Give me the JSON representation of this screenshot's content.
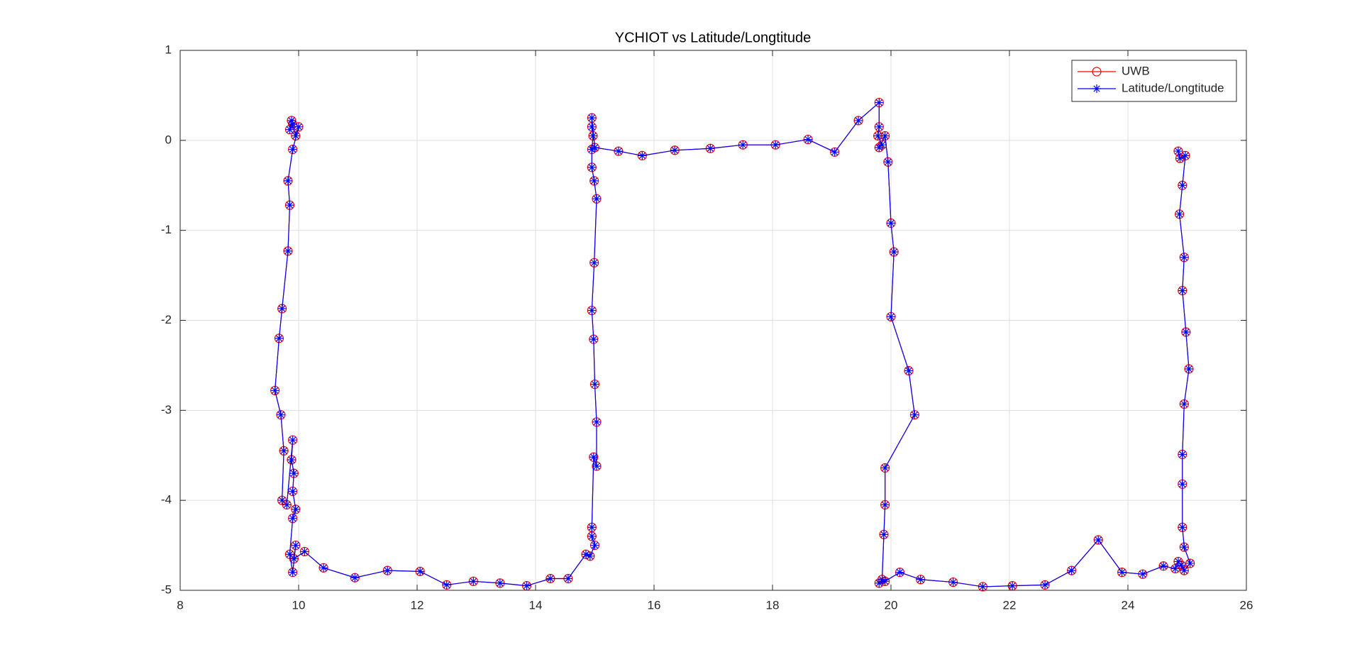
{
  "chart_data": {
    "type": "line",
    "title": "YCHIOT vs Latitude/Longtitude",
    "xlim": [
      8,
      26
    ],
    "xticks": [
      8,
      10,
      12,
      14,
      16,
      18,
      20,
      22,
      24,
      26
    ],
    "ylim": [
      -5,
      1
    ],
    "yticks": [
      -5,
      -4,
      -3,
      -2,
      -1,
      0,
      1
    ],
    "grid": true,
    "legend": "northeast",
    "series": [
      {
        "name": "UWB",
        "color": "#ff0000",
        "marker": "circle",
        "x": [
          9.88,
          9.85,
          9.9,
          9.95,
          10.0,
          9.9,
          9.82,
          9.85,
          9.82,
          9.72,
          9.67,
          9.6,
          9.7,
          9.75,
          9.72,
          9.8,
          9.9,
          9.88,
          9.92,
          9.9,
          9.95,
          9.9,
          9.85,
          9.9,
          9.95,
          9.92,
          10.1,
          10.42,
          10.95,
          11.5,
          12.05,
          12.5,
          12.95,
          13.4,
          13.85,
          14.25,
          14.55,
          14.85,
          14.92,
          15.0,
          14.95,
          14.95,
          14.98,
          15.03,
          15.03,
          15.0,
          14.98,
          14.95,
          14.99,
          15.03,
          14.99,
          14.95,
          14.95,
          14.97,
          14.95,
          14.95,
          15.0,
          15.4,
          15.8,
          16.35,
          16.95,
          17.5,
          18.05,
          18.6,
          19.05,
          19.45,
          19.8,
          19.8,
          19.78,
          19.85,
          19.8,
          19.9,
          19.95,
          20.0,
          20.05,
          20.0,
          20.3,
          20.4,
          19.9,
          19.9,
          19.88,
          19.85,
          19.8,
          19.9,
          20.15,
          20.5,
          21.05,
          21.55,
          22.05,
          22.6,
          23.05,
          23.5,
          23.9,
          24.25,
          24.6,
          24.8,
          24.85,
          24.9,
          24.95,
          25.05,
          24.95,
          24.92,
          24.92,
          24.92,
          24.95,
          25.03,
          24.98,
          24.92,
          24.95,
          24.87,
          24.92,
          24.97,
          24.88,
          24.85
        ],
        "y": [
          0.22,
          0.12,
          0.18,
          0.05,
          0.15,
          -0.1,
          -0.45,
          -0.72,
          -1.23,
          -1.87,
          -2.2,
          -2.78,
          -3.05,
          -3.45,
          -4.0,
          -4.05,
          -3.33,
          -3.55,
          -3.7,
          -3.9,
          -4.1,
          -4.2,
          -4.6,
          -4.8,
          -4.5,
          -4.65,
          -4.57,
          -4.75,
          -4.86,
          -4.78,
          -4.79,
          -4.94,
          -4.9,
          -4.92,
          -4.95,
          -4.87,
          -4.87,
          -4.6,
          -4.62,
          -4.5,
          -4.4,
          -4.3,
          -3.52,
          -3.62,
          -3.13,
          -2.71,
          -2.21,
          -1.89,
          -1.36,
          -0.65,
          -0.45,
          -0.3,
          -0.1,
          0.05,
          0.15,
          0.25,
          -0.08,
          -0.12,
          -0.17,
          -0.11,
          -0.09,
          -0.05,
          -0.05,
          0.01,
          -0.13,
          0.22,
          0.42,
          0.15,
          0.05,
          -0.05,
          -0.08,
          0.05,
          -0.24,
          -0.92,
          -1.24,
          -1.96,
          -2.56,
          -3.05,
          -3.64,
          -4.05,
          -4.38,
          -4.88,
          -4.92,
          -4.9,
          -4.8,
          -4.88,
          -4.91,
          -4.96,
          -4.95,
          -4.94,
          -4.78,
          -4.44,
          -4.8,
          -4.82,
          -4.73,
          -4.76,
          -4.68,
          -4.72,
          -4.78,
          -4.7,
          -4.52,
          -4.3,
          -3.82,
          -3.49,
          -2.93,
          -2.54,
          -2.13,
          -1.67,
          -1.3,
          -0.82,
          -0.5,
          -0.17,
          -0.2,
          -0.12
        ]
      },
      {
        "name": "Latitude/Longtitude",
        "color": "#0000ff",
        "marker": "asterisk",
        "x": [
          9.88,
          9.85,
          9.9,
          9.95,
          10.0,
          9.9,
          9.82,
          9.85,
          9.82,
          9.72,
          9.67,
          9.6,
          9.7,
          9.75,
          9.72,
          9.8,
          9.9,
          9.88,
          9.92,
          9.9,
          9.95,
          9.9,
          9.85,
          9.9,
          9.95,
          9.92,
          10.1,
          10.42,
          10.95,
          11.5,
          12.05,
          12.5,
          12.95,
          13.4,
          13.85,
          14.25,
          14.55,
          14.85,
          14.92,
          15.0,
          14.95,
          14.95,
          14.98,
          15.03,
          15.03,
          15.0,
          14.98,
          14.95,
          14.99,
          15.03,
          14.99,
          14.95,
          14.95,
          14.97,
          14.95,
          14.95,
          15.0,
          15.4,
          15.8,
          16.35,
          16.95,
          17.5,
          18.05,
          18.6,
          19.05,
          19.45,
          19.8,
          19.8,
          19.78,
          19.85,
          19.8,
          19.9,
          19.95,
          20.0,
          20.05,
          20.0,
          20.3,
          20.4,
          19.9,
          19.9,
          19.88,
          19.85,
          19.8,
          19.9,
          20.15,
          20.5,
          21.05,
          21.55,
          22.05,
          22.6,
          23.05,
          23.5,
          23.9,
          24.25,
          24.6,
          24.8,
          24.85,
          24.9,
          24.95,
          25.05,
          24.95,
          24.92,
          24.92,
          24.92,
          24.95,
          25.03,
          24.98,
          24.92,
          24.95,
          24.87,
          24.92,
          24.97,
          24.88,
          24.85
        ],
        "y": [
          0.22,
          0.12,
          0.18,
          0.05,
          0.15,
          -0.1,
          -0.45,
          -0.72,
          -1.23,
          -1.87,
          -2.2,
          -2.78,
          -3.05,
          -3.45,
          -4.0,
          -4.05,
          -3.33,
          -3.55,
          -3.7,
          -3.9,
          -4.1,
          -4.2,
          -4.6,
          -4.8,
          -4.5,
          -4.65,
          -4.57,
          -4.75,
          -4.86,
          -4.78,
          -4.79,
          -4.94,
          -4.9,
          -4.92,
          -4.95,
          -4.87,
          -4.87,
          -4.6,
          -4.62,
          -4.5,
          -4.4,
          -4.3,
          -3.52,
          -3.62,
          -3.13,
          -2.71,
          -2.21,
          -1.89,
          -1.36,
          -0.65,
          -0.45,
          -0.3,
          -0.1,
          0.05,
          0.15,
          0.25,
          -0.08,
          -0.12,
          -0.17,
          -0.11,
          -0.09,
          -0.05,
          -0.05,
          0.01,
          -0.13,
          0.22,
          0.42,
          0.15,
          0.05,
          -0.05,
          -0.08,
          0.05,
          -0.24,
          -0.92,
          -1.24,
          -1.96,
          -2.56,
          -3.05,
          -3.64,
          -4.05,
          -4.38,
          -4.88,
          -4.92,
          -4.9,
          -4.8,
          -4.88,
          -4.91,
          -4.96,
          -4.95,
          -4.94,
          -4.78,
          -4.44,
          -4.8,
          -4.82,
          -4.73,
          -4.76,
          -4.68,
          -4.72,
          -4.78,
          -4.7,
          -4.52,
          -4.3,
          -3.82,
          -3.49,
          -2.93,
          -2.54,
          -2.13,
          -1.67,
          -1.3,
          -0.82,
          -0.5,
          -0.17,
          -0.2,
          -0.12
        ]
      }
    ]
  }
}
